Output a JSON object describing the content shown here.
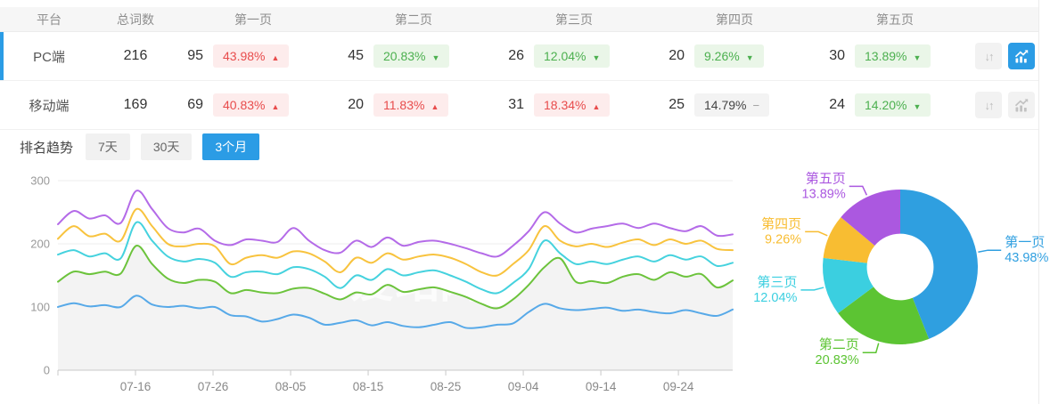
{
  "table": {
    "headers": [
      "平台",
      "总词数",
      "第一页",
      "第二页",
      "第三页",
      "第四页",
      "第五页"
    ],
    "rows": [
      {
        "platform": "PC端",
        "total": "216",
        "state": "selected",
        "trend_active": "true",
        "pages": [
          {
            "count": "95",
            "pct": "43.98%",
            "dir": "up"
          },
          {
            "count": "45",
            "pct": "20.83%",
            "dir": "down"
          },
          {
            "count": "26",
            "pct": "12.04%",
            "dir": "down"
          },
          {
            "count": "20",
            "pct": "9.26%",
            "dir": "down"
          },
          {
            "count": "30",
            "pct": "13.89%",
            "dir": "down"
          }
        ]
      },
      {
        "platform": "移动端",
        "total": "169",
        "state": "normal",
        "trend_active": "false",
        "pages": [
          {
            "count": "69",
            "pct": "40.83%",
            "dir": "up"
          },
          {
            "count": "20",
            "pct": "11.83%",
            "dir": "up"
          },
          {
            "count": "31",
            "pct": "18.34%",
            "dir": "up"
          },
          {
            "count": "25",
            "pct": "14.79%",
            "dir": "flat"
          },
          {
            "count": "24",
            "pct": "14.20%",
            "dir": "down"
          }
        ]
      }
    ]
  },
  "trend": {
    "title": "排名趋势",
    "tabs": [
      {
        "label": "7天",
        "active": "false"
      },
      {
        "label": "30天",
        "active": "false"
      },
      {
        "label": "3个月",
        "active": "true"
      }
    ]
  },
  "colors": {
    "accent": "#2b9ce5",
    "up_red": "#e84c4c",
    "down_green": "#4cb04f",
    "up_bg": "#fdecec",
    "down_bg": "#eaf6e8",
    "flat_bg": "#f3f3f3"
  },
  "chart_data": [
    {
      "type": "line",
      "title": "排名趋势（3个月）",
      "x_tick_labels": [
        "07-16",
        "07-26",
        "08-05",
        "08-15",
        "08-25",
        "09-04",
        "09-14",
        "09-24"
      ],
      "x_tick_days": [
        10,
        20,
        30,
        40,
        50,
        60,
        70,
        80
      ],
      "x_span_days": 87,
      "ylim": [
        0,
        300
      ],
      "y_ticks": [
        0,
        100,
        200,
        300
      ],
      "grid": "horizontal",
      "legend": "none",
      "watermark": "爱站网",
      "series": [
        {
          "name": "第一页",
          "color": "#57a9e8",
          "values": [
            100,
            106,
            101,
            103,
            100,
            118,
            104,
            100,
            102,
            98,
            100,
            87,
            85,
            77,
            81,
            88,
            83,
            72,
            75,
            79,
            71,
            76,
            70,
            68,
            72,
            76,
            67,
            68,
            72,
            74,
            92,
            105,
            98,
            95,
            97,
            99,
            94,
            96,
            92,
            90,
            95,
            90,
            86,
            96
          ]
        },
        {
          "name": "第二页",
          "color": "#6cc33c",
          "area_fill": "#f3f3f3",
          "values": [
            140,
            156,
            152,
            156,
            153,
            197,
            168,
            145,
            138,
            143,
            140,
            122,
            127,
            123,
            122,
            129,
            130,
            121,
            112,
            123,
            120,
            135,
            124,
            128,
            131,
            124,
            116,
            105,
            98,
            112,
            135,
            163,
            177,
            140,
            141,
            138,
            148,
            152,
            143,
            155,
            148,
            152,
            131,
            142
          ]
        },
        {
          "name": "第三页",
          "color": "#45d2de",
          "values": [
            183,
            190,
            180,
            185,
            177,
            234,
            205,
            180,
            172,
            176,
            170,
            148,
            155,
            156,
            152,
            163,
            160,
            148,
            130,
            150,
            143,
            160,
            150,
            155,
            158,
            150,
            140,
            128,
            122,
            138,
            160,
            205,
            185,
            168,
            172,
            168,
            175,
            180,
            172,
            182,
            175,
            180,
            165,
            170
          ]
        },
        {
          "name": "第四页",
          "color": "#f8c33e",
          "values": [
            208,
            228,
            212,
            216,
            205,
            255,
            228,
            200,
            196,
            200,
            196,
            168,
            178,
            182,
            178,
            188,
            185,
            172,
            155,
            178,
            170,
            185,
            175,
            180,
            183,
            178,
            168,
            155,
            150,
            168,
            190,
            228,
            205,
            196,
            200,
            195,
            202,
            207,
            198,
            207,
            200,
            205,
            192,
            190
          ]
        },
        {
          "name": "第五页",
          "color": "#b46be8",
          "values": [
            231,
            252,
            240,
            245,
            233,
            284,
            255,
            225,
            218,
            224,
            205,
            198,
            207,
            205,
            203,
            225,
            205,
            190,
            186,
            205,
            195,
            210,
            197,
            203,
            205,
            200,
            193,
            185,
            180,
            197,
            220,
            250,
            232,
            218,
            224,
            228,
            232,
            225,
            232,
            225,
            220,
            228,
            213,
            215
          ]
        }
      ]
    },
    {
      "type": "pie",
      "inner_radius_ratio": 0.43,
      "slices": [
        {
          "label": "第一页",
          "pct": "43.98%",
          "value": 43.98,
          "color": "#2f9fe0"
        },
        {
          "label": "第二页",
          "pct": "20.83%",
          "value": 20.83,
          "color": "#5cc433"
        },
        {
          "label": "第三页",
          "pct": "12.04%",
          "value": 12.04,
          "color": "#3bcfe0"
        },
        {
          "label": "第四页",
          "pct": "9.26%",
          "value": 9.26,
          "color": "#f8bd32"
        },
        {
          "label": "第五页",
          "pct": "13.89%",
          "value": 13.89,
          "color": "#ab58e0"
        }
      ]
    }
  ]
}
